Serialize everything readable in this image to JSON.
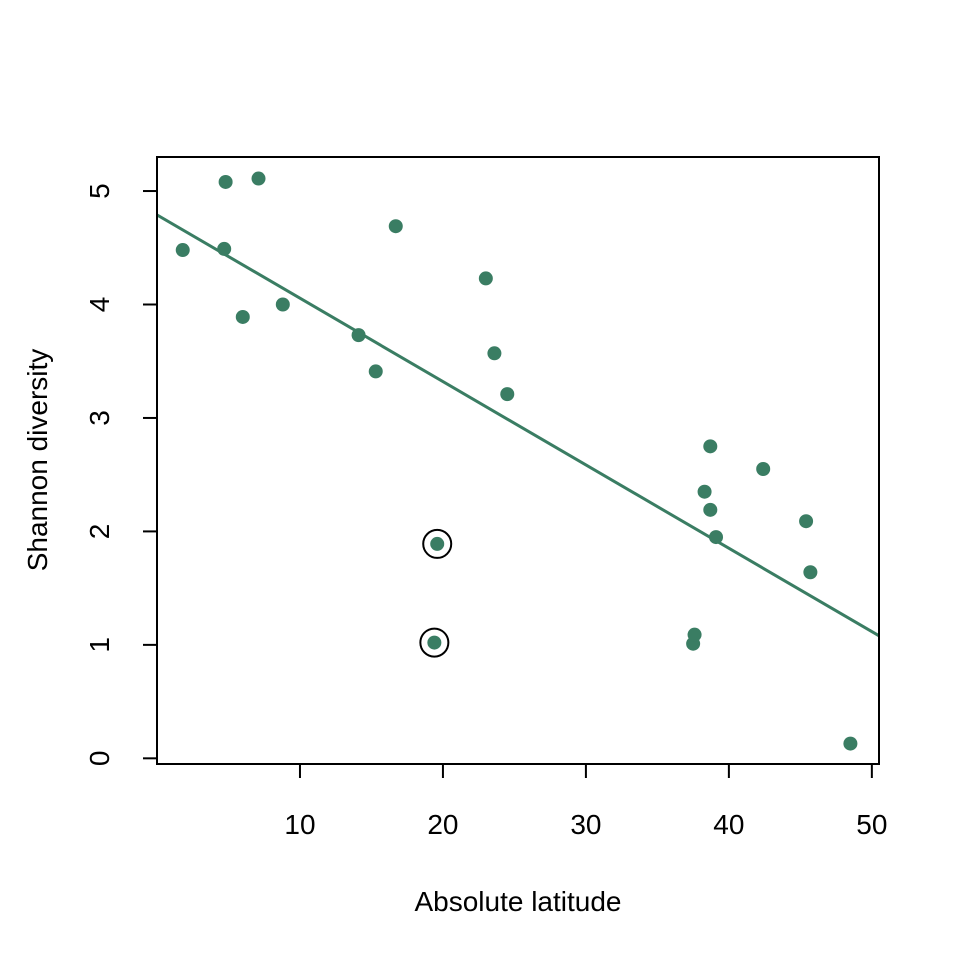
{
  "chart_data": {
    "type": "scatter",
    "title": "",
    "xlabel": "Absolute latitude",
    "ylabel": "Shannon diversity",
    "xlim": [
      0,
      50.5
    ],
    "ylim": [
      -0.05,
      5.3
    ],
    "x_ticks": [
      10,
      20,
      30,
      40,
      50
    ],
    "y_ticks": [
      0,
      1,
      2,
      3,
      4,
      5
    ],
    "grid": false,
    "legend": "none",
    "point_color": "#3a7d63",
    "line_color": "#3a7d63",
    "points": [
      {
        "x": 1.8,
        "y": 4.48
      },
      {
        "x": 4.7,
        "y": 4.49
      },
      {
        "x": 4.8,
        "y": 5.08
      },
      {
        "x": 6.0,
        "y": 3.89
      },
      {
        "x": 7.1,
        "y": 5.11
      },
      {
        "x": 8.8,
        "y": 4.0
      },
      {
        "x": 14.1,
        "y": 3.73
      },
      {
        "x": 15.3,
        "y": 3.41
      },
      {
        "x": 16.7,
        "y": 4.69
      },
      {
        "x": 19.4,
        "y": 1.02
      },
      {
        "x": 19.6,
        "y": 1.89
      },
      {
        "x": 23.0,
        "y": 4.23
      },
      {
        "x": 23.6,
        "y": 3.57
      },
      {
        "x": 24.5,
        "y": 3.21
      },
      {
        "x": 37.5,
        "y": 1.01
      },
      {
        "x": 37.6,
        "y": 1.09
      },
      {
        "x": 38.3,
        "y": 2.35
      },
      {
        "x": 38.7,
        "y": 2.75
      },
      {
        "x": 38.7,
        "y": 2.19
      },
      {
        "x": 39.1,
        "y": 1.95
      },
      {
        "x": 42.4,
        "y": 2.55
      },
      {
        "x": 45.4,
        "y": 2.09
      },
      {
        "x": 45.7,
        "y": 1.64
      },
      {
        "x": 48.5,
        "y": 0.13
      }
    ],
    "highlighted_points": [
      {
        "x": 19.4,
        "y": 1.02
      },
      {
        "x": 19.6,
        "y": 1.89
      }
    ],
    "regression_line": {
      "x0": 0,
      "y0": 4.79,
      "x1": 50.5,
      "y1": 1.08
    }
  }
}
